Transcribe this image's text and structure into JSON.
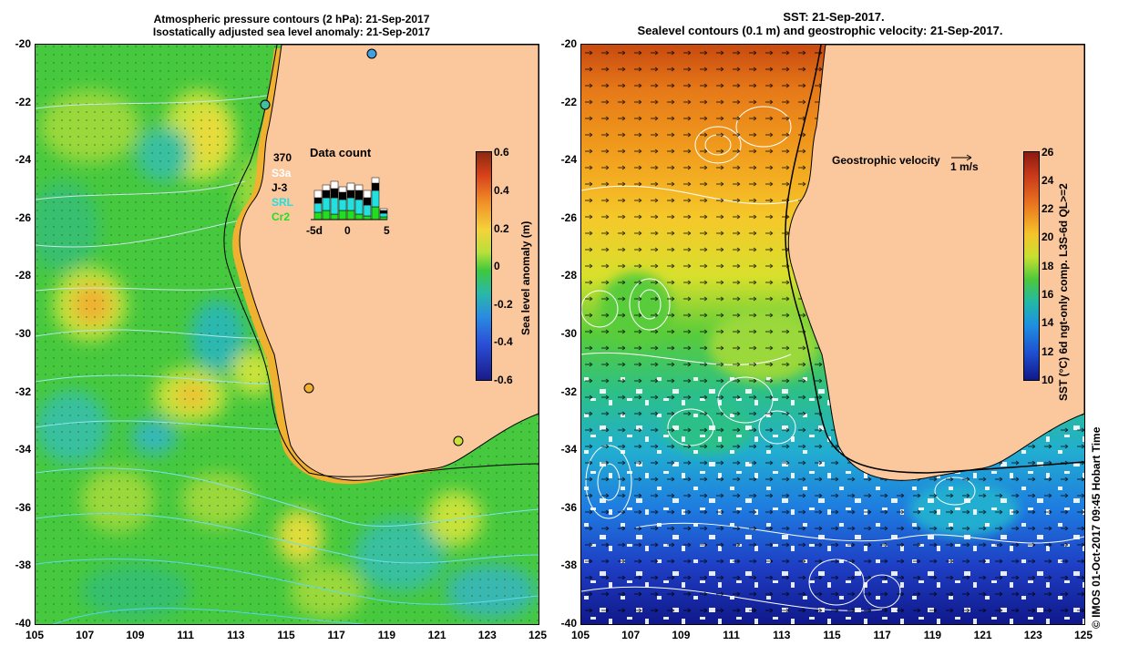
{
  "left_panel": {
    "title_line1": "Atmospheric pressure contours (2 hPa): 21-Sep-2017",
    "title_line2": "Isostatically adjusted sea level anomaly: 21-Sep-2017",
    "colorbar_label": "Sea level anomaly (m)",
    "colorbar_ticks": [
      "0.6",
      "0.4",
      "0.2",
      "0",
      "-0.2",
      "-0.4",
      "-0.6"
    ],
    "data_count": {
      "title": "Data count",
      "number": "370",
      "sats": [
        "S3a",
        "J-3",
        "SRL",
        "Cr2"
      ],
      "sat_colors": [
        "#ffffff",
        "#000000",
        "#22e0e0",
        "#22dd22"
      ],
      "axis_ticks": [
        "-5d",
        "0",
        "5"
      ]
    }
  },
  "right_panel": {
    "title_line1": "SST: 21-Sep-2017.",
    "title_line2": "Sealevel contours (0.1 m) and geostrophic velocity: 21-Sep-2017.",
    "legend_text": "Geostrophic velocity",
    "legend_unit": "1 m/s",
    "colorbar_label": "SST (°C) 6d ngt-only comp. L3S-6d QL>=2",
    "colorbar_ticks": [
      "26",
      "24",
      "22",
      "20",
      "18",
      "16",
      "14",
      "12",
      "10"
    ]
  },
  "axes": {
    "lat_ticks": [
      "-20",
      "-22",
      "-24",
      "-26",
      "-28",
      "-30",
      "-32",
      "-34",
      "-36",
      "-38",
      "-40"
    ],
    "lon_ticks": [
      "105",
      "107",
      "109",
      "111",
      "113",
      "115",
      "117",
      "119",
      "121",
      "123",
      "125"
    ]
  },
  "credit": "© IMOS 01-Oct-2017 09:45 Hobart Time",
  "colors": {
    "land": "#fbc89e",
    "ocean_green": "#44c83c",
    "coast": "#000000"
  }
}
